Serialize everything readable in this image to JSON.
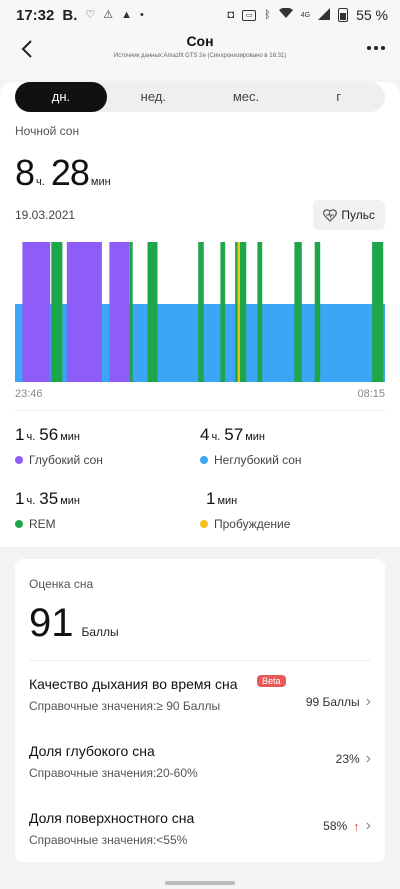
{
  "status": {
    "time": "17:32",
    "carrier": "B.",
    "battery": "55 %",
    "network": "4G",
    "icons": [
      "heart-icon",
      "recycle-icon",
      "warning-icon",
      "dot-icon",
      "camera-icon",
      "vibrate-icon",
      "bluetooth-icon",
      "wifi-icon",
      "signal-icon",
      "battery-icon"
    ]
  },
  "header": {
    "title": "Сон",
    "subtitle": "Источник данных:Amazfit GTS 2e (Синхронизировано в 16:31)"
  },
  "tabs": [
    {
      "label": "дн.",
      "active": true
    },
    {
      "label": "нед.",
      "active": false
    },
    {
      "label": "мес.",
      "active": false
    },
    {
      "label": "г",
      "active": false
    }
  ],
  "sleep": {
    "section_label": "Ночной сон",
    "hours": "8",
    "hours_unit": "ч.",
    "minutes": "28",
    "minutes_unit": "мин",
    "date": "19.03.2021",
    "pulse_label": "Пульс"
  },
  "chart_data": {
    "type": "bar",
    "x_start": "23:46",
    "x_end": "08:15",
    "colors": {
      "deep": "#8e5cf6",
      "light": "#3ba6f5",
      "rem": "#1fa64a",
      "awake": "#f2c21b"
    },
    "light_band": true,
    "segments": [
      {
        "stage": "deep",
        "start": 0.02,
        "end": 0.095
      },
      {
        "stage": "rem",
        "start": 0.098,
        "end": 0.128
      },
      {
        "stage": "deep",
        "start": 0.14,
        "end": 0.235
      },
      {
        "stage": "deep",
        "start": 0.255,
        "end": 0.31
      },
      {
        "stage": "rem",
        "start": 0.31,
        "end": 0.318
      },
      {
        "stage": "rem",
        "start": 0.358,
        "end": 0.385
      },
      {
        "stage": "rem",
        "start": 0.495,
        "end": 0.51
      },
      {
        "stage": "rem",
        "start": 0.555,
        "end": 0.568
      },
      {
        "stage": "rem",
        "start": 0.595,
        "end": 0.602
      },
      {
        "stage": "awake",
        "start": 0.602,
        "end": 0.608
      },
      {
        "stage": "rem",
        "start": 0.608,
        "end": 0.625
      },
      {
        "stage": "rem",
        "start": 0.655,
        "end": 0.668
      },
      {
        "stage": "rem",
        "start": 0.755,
        "end": 0.775
      },
      {
        "stage": "rem",
        "start": 0.81,
        "end": 0.825
      },
      {
        "stage": "rem",
        "start": 0.965,
        "end": 0.995
      }
    ]
  },
  "stats": [
    {
      "h": "1",
      "hu": "ч.",
      "m": "56",
      "mu": "мин",
      "label": "Глубокий сон",
      "color": "#8e5cf6"
    },
    {
      "h": "4",
      "hu": "ч.",
      "m": "57",
      "mu": "мин",
      "label": "Неглубокий сон",
      "color": "#3ba6f5"
    },
    {
      "h": "1",
      "hu": "ч.",
      "m": "35",
      "mu": "мин",
      "label": "REM",
      "color": "#1fa64a"
    },
    {
      "h": "",
      "hu": "",
      "m": "1",
      "mu": "мин",
      "label": "Пробуждение",
      "color": "#f2c21b"
    }
  ],
  "score": {
    "label": "Оценка сна",
    "value": "91",
    "unit": "Баллы"
  },
  "metrics": [
    {
      "title": "Качество дыхания во время сна",
      "badge": "Beta",
      "ref": "Справочные значения:≥ 90 Баллы",
      "value": "99 Баллы",
      "arrow": ""
    },
    {
      "title": "Доля глубокого сна",
      "badge": "",
      "ref": "Справочные значения:20-60%",
      "value": "23%",
      "arrow": ""
    },
    {
      "title": "Доля поверхностного сна",
      "badge": "",
      "ref": "Справочные значения:<55%",
      "value": "58%",
      "arrow": "↑"
    }
  ]
}
